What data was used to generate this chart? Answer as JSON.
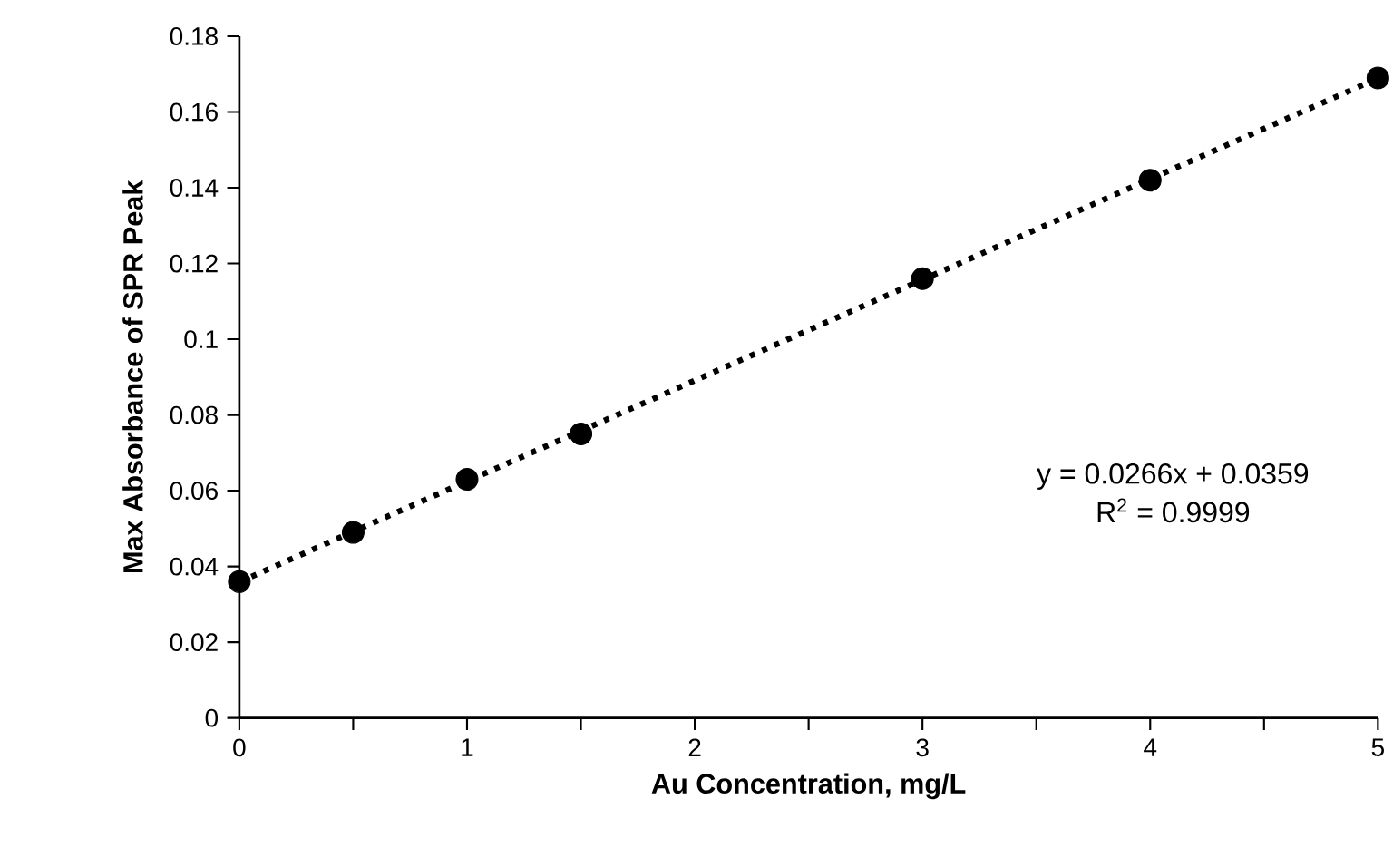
{
  "chart_data": {
    "type": "scatter",
    "xlabel": "Au Concentration, mg/L",
    "ylabel": "Max Absorbance of SPR Peak",
    "x": [
      0,
      0.5,
      1,
      1.5,
      3,
      4,
      5
    ],
    "series": [
      {
        "color": "#000000",
        "marker": "circle",
        "values": [
          0.036,
          0.049,
          0.063,
          0.075,
          0.116,
          0.142,
          0.169
        ]
      },
      {
        "type": "line",
        "color": "#000000",
        "line_style": "dotted",
        "x": [
          0,
          5
        ],
        "values": [
          0.0359,
          0.1689
        ]
      }
    ],
    "xlim": [
      0,
      5
    ],
    "ylim": [
      0,
      0.18
    ],
    "xticks": [
      0,
      {
        "value": 0.5,
        "label": null
      },
      1,
      {
        "value": 1.5,
        "label": null
      },
      2,
      {
        "value": 2.5,
        "label": null
      },
      3,
      {
        "value": 3.5,
        "label": null
      },
      4,
      {
        "value": 4.5,
        "label": null
      },
      5
    ],
    "yticks": [
      0,
      0.02,
      0.04,
      0.06,
      0.08,
      0.1,
      0.12,
      0.14,
      0.16,
      0.18
    ],
    "annotations": [
      "y = 0.0266x + 0.0359",
      "R$^{2}$ = 0.9999"
    ],
    "grid": false
  }
}
